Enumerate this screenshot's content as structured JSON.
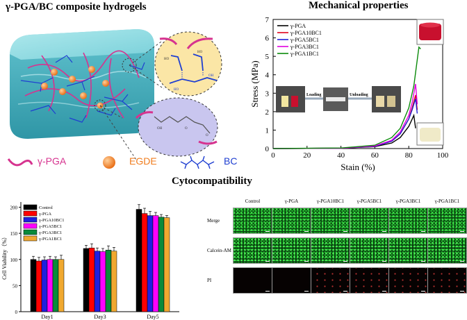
{
  "titles": {
    "composite": "γ-PGA/BC composite hydrogels",
    "mechanical": "Mechanical properties",
    "cyto": "Cytocompatibility"
  },
  "legend_components": [
    {
      "label": "γ-PGA",
      "color": "#d6338f"
    },
    {
      "label": "EGDE",
      "color": "#f07d1f"
    },
    {
      "label": "BC",
      "color": "#1f3fd1"
    }
  ],
  "loading_labels": {
    "loading": "Loading",
    "unloading": "Unloading"
  },
  "chart_data": [
    {
      "type": "line",
      "title": "",
      "xlabel": "Stain (%)",
      "ylabel": "Stress (MPa)",
      "xlim": [
        0,
        100
      ],
      "ylim": [
        0,
        7
      ],
      "xticks": [
        0,
        20,
        40,
        60,
        80,
        100
      ],
      "yticks": [
        0,
        1,
        2,
        3,
        4,
        5,
        6,
        7
      ],
      "legend_position": "top-left",
      "series": [
        {
          "name": "γ-PGA",
          "color": "#000000",
          "x": [
            0,
            40,
            60,
            70,
            75,
            80,
            82,
            83,
            84
          ],
          "y": [
            0,
            0.02,
            0.1,
            0.3,
            0.6,
            1.2,
            1.6,
            1.8,
            1.1
          ]
        },
        {
          "name": "γ-PGA10BC1",
          "color": "#e0001b",
          "x": [
            0,
            40,
            60,
            70,
            75,
            80,
            82,
            84,
            85
          ],
          "y": [
            0,
            0.02,
            0.12,
            0.4,
            0.8,
            1.6,
            2.2,
            2.9,
            2.1
          ]
        },
        {
          "name": "γ-PGA5BC1",
          "color": "#1f1fd6",
          "x": [
            0,
            40,
            60,
            70,
            75,
            80,
            82,
            84,
            85
          ],
          "y": [
            0,
            0.02,
            0.12,
            0.4,
            0.8,
            1.6,
            2.1,
            2.7,
            1.9
          ]
        },
        {
          "name": "γ-PGA3BC1",
          "color": "#e000e0",
          "x": [
            0,
            40,
            60,
            70,
            75,
            80,
            82,
            84,
            85
          ],
          "y": [
            0,
            0.02,
            0.14,
            0.45,
            0.9,
            1.8,
            2.5,
            3.5,
            2.4
          ]
        },
        {
          "name": "γ-PGA1BC1",
          "color": "#0a8a0a",
          "x": [
            0,
            40,
            60,
            70,
            75,
            80,
            83,
            86,
            87
          ],
          "y": [
            0,
            0.03,
            0.18,
            0.6,
            1.1,
            2.2,
            3.4,
            5.5,
            5.4
          ]
        }
      ]
    },
    {
      "type": "bar",
      "title": "",
      "xlabel": "",
      "ylabel": "Cell Viability（%）",
      "ylim": [
        0,
        210
      ],
      "yticks": [
        0,
        50,
        100,
        150,
        200
      ],
      "categories": [
        "Day1",
        "Day3",
        "Day5"
      ],
      "legend_position": "top-left",
      "series": [
        {
          "name": "Control",
          "color": "#000000",
          "values": [
            100,
            121,
            196
          ],
          "errors": [
            6,
            6,
            9
          ]
        },
        {
          "name": "γ-PGA",
          "color": "#ff0000",
          "values": [
            97,
            122,
            188
          ],
          "errors": [
            7,
            8,
            10
          ]
        },
        {
          "name": "γ-PGA10BC1",
          "color": "#1f1fe0",
          "values": [
            99,
            116,
            184
          ],
          "errors": [
            6,
            6,
            8
          ]
        },
        {
          "name": "γ-PGA5BC1",
          "color": "#ff00ff",
          "values": [
            100,
            115,
            184
          ],
          "errors": [
            6,
            6,
            6
          ]
        },
        {
          "name": "γ-PGA3BC1",
          "color": "#0a8a3a",
          "values": [
            100,
            118,
            181
          ],
          "errors": [
            5,
            8,
            5
          ]
        },
        {
          "name": "γ-PGA1BC1",
          "color": "#f0a830",
          "values": [
            100,
            116,
            180
          ],
          "errors": [
            8,
            7,
            4
          ]
        }
      ]
    }
  ],
  "microscopy": {
    "columns": [
      "Control",
      "γ-PGA",
      "γ-PGA10BC1",
      "γ-PGA5BC1",
      "γ-PGA3BC1",
      "γ-PGA1BC1"
    ],
    "rows": [
      "Merge",
      "Calcein-AM",
      "PI"
    ]
  }
}
